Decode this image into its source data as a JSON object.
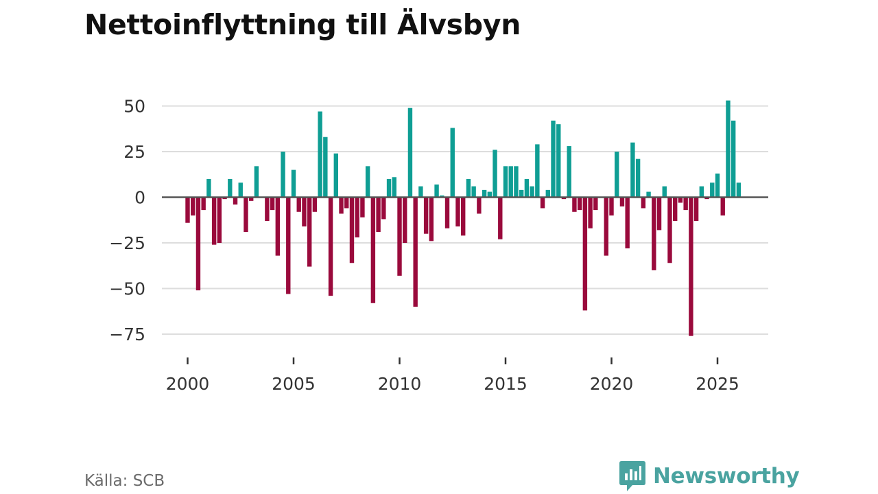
{
  "title": "Nettoinflyttning till Älvsbyn",
  "source": "Källa: SCB",
  "brand": {
    "name": "Newsworthy",
    "icon": "newsworthy-logo-icon",
    "color": "#4aa3a0"
  },
  "colors": {
    "positive": "#0f9e94",
    "negative": "#9a0a3c",
    "grid": "#dddddd",
    "zero_line": "#555555",
    "axis_text": "#333333"
  },
  "chart_data": {
    "type": "bar",
    "title": "Nettoinflyttning till Älvsbyn",
    "xlabel": "",
    "ylabel": "",
    "x_start": 2000.0,
    "x_step": 0.25,
    "values": [
      -14,
      -10,
      -51,
      -7,
      10,
      -26,
      -25,
      -1,
      10,
      -4,
      8,
      -19,
      -2,
      17,
      0,
      -13,
      -7,
      -32,
      25,
      -53,
      15,
      -8,
      -16,
      -38,
      -8,
      47,
      33,
      -54,
      24,
      -9,
      -6,
      -36,
      -22,
      -11,
      17,
      -58,
      -19,
      -12,
      10,
      11,
      -43,
      -25,
      49,
      -60,
      6,
      -20,
      -24,
      7,
      1,
      -17,
      38,
      -16,
      -21,
      10,
      6,
      -9,
      4,
      3,
      26,
      -23,
      17,
      17,
      17,
      4,
      10,
      6,
      29,
      -6,
      4,
      42,
      40,
      -1,
      28,
      -8,
      -7,
      -62,
      -17,
      -7,
      0,
      -32,
      -10,
      25,
      -5,
      -28,
      30,
      21,
      -6,
      3,
      -40,
      -18,
      6,
      -36,
      -13,
      -3,
      -7,
      -76,
      -13,
      6,
      -1,
      8,
      13,
      -10,
      53,
      42,
      8
    ],
    "ylim": [
      -75,
      53
    ],
    "yticks": [
      50,
      25,
      0,
      -25,
      -50,
      -75
    ],
    "ytick_labels": [
      "50",
      "25",
      "0",
      "−25",
      "−50",
      "−75"
    ],
    "xticks": [
      2000,
      2005,
      2010,
      2015,
      2020,
      2025
    ],
    "xtick_labels": [
      "2000",
      "2005",
      "2010",
      "2015",
      "2020",
      "2025"
    ],
    "grid": true,
    "legend": null
  }
}
